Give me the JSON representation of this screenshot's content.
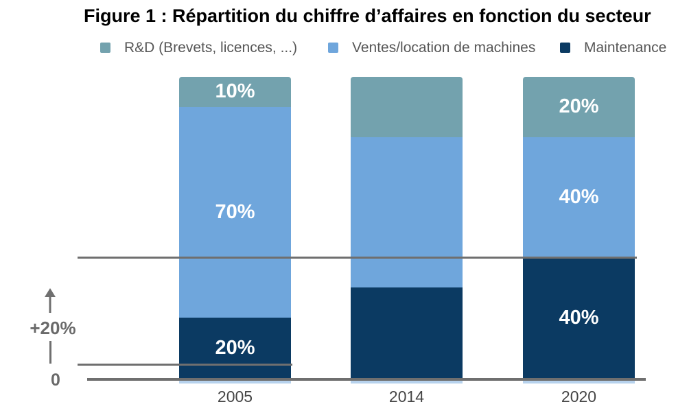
{
  "title": "Figure 1 : Répartition du chiffre d’affaires en fonction du secteur",
  "colors": {
    "rd": "#73A2AE",
    "ventes": "#6FA6DC",
    "maintenance": "#0B3A62",
    "reference_line": "#6F6F6F",
    "axis_text": "#454545",
    "scale_text": "#6A6A6A",
    "legend_text": "#575757",
    "segment_label_text": "#FFFFFF"
  },
  "legend": {
    "items": [
      {
        "key": "rd",
        "label": "R&D (Brevets, licences, ...)",
        "color": "#73A2AE"
      },
      {
        "key": "ventes",
        "label": "Ventes/location de machines",
        "color": "#6FA6DC"
      },
      {
        "key": "maintenance",
        "label": "Maintenance",
        "color": "#0B3A62"
      }
    ]
  },
  "chart_data": {
    "type": "bar",
    "stacked": true,
    "title": "Figure 1 : Répartition du chiffre d’affaires en fonction du secteur",
    "unit": "%",
    "categories": [
      "2005",
      "2014",
      "2020"
    ],
    "series": [
      {
        "key": "maintenance",
        "name": "Maintenance",
        "color": "#0B3A62",
        "values": [
          20,
          30,
          40
        ],
        "labels": [
          "20%",
          "",
          "40%"
        ]
      },
      {
        "key": "ventes",
        "name": "Ventes/location de machines",
        "color": "#6FA6DC",
        "values": [
          70,
          50,
          40
        ],
        "labels": [
          "70%",
          "",
          "40%"
        ]
      },
      {
        "key": "rd",
        "name": "R&D (Brevets, licences, ...)",
        "color": "#73A2AE",
        "values": [
          10,
          20,
          20
        ],
        "labels": [
          "10%",
          "",
          "20%"
        ]
      }
    ],
    "ylim": [
      0,
      100
    ],
    "grid": false,
    "legend_position": "top",
    "reference_lines_pct": [
      40,
      4.5
    ],
    "axis_annotation": {
      "zero": "0",
      "increment": "+20%"
    }
  }
}
